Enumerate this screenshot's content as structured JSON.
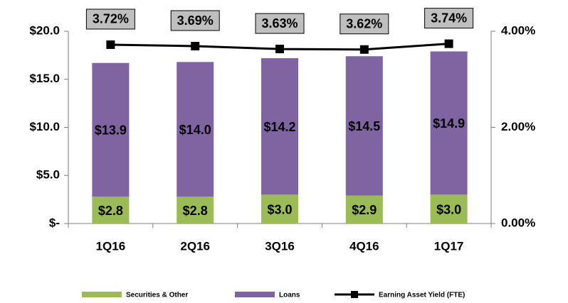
{
  "chart_data": {
    "type": "bar",
    "stacked": true,
    "categories": [
      "1Q16",
      "2Q16",
      "3Q16",
      "4Q16",
      "1Q17"
    ],
    "series": [
      {
        "name": "Securities & Other",
        "color": "#9bbb59",
        "values": [
          2.8,
          2.8,
          3.0,
          2.9,
          3.0
        ],
        "value_labels": [
          "$2.8",
          "$2.8",
          "$3.0",
          "$2.9",
          "$3.0"
        ]
      },
      {
        "name": "Loans",
        "color": "#8064a2",
        "values": [
          13.9,
          14.0,
          14.2,
          14.5,
          14.9
        ],
        "value_labels": [
          "$13.9",
          "$14.0",
          "$14.2",
          "$14.5",
          "$14.9"
        ]
      },
      {
        "name": "Earning Asset Yield (FTE)",
        "type": "line",
        "axis": "y2",
        "color": "#000000",
        "values": [
          3.72,
          3.69,
          3.63,
          3.62,
          3.74
        ],
        "value_labels": [
          "3.72%",
          "3.69%",
          "3.63%",
          "3.62%",
          "3.74%"
        ]
      }
    ],
    "ylim": [
      0,
      20
    ],
    "yticks": [
      {
        "value": 0,
        "label": "$-"
      },
      {
        "value": 5,
        "label": "$5.0"
      },
      {
        "value": 10,
        "label": "$10.0"
      },
      {
        "value": 15,
        "label": "$15.0"
      },
      {
        "value": 20,
        "label": "$20.0"
      }
    ],
    "y2lim": [
      0,
      4
    ],
    "y2ticks": [
      {
        "value": 0,
        "label": "0.00%"
      },
      {
        "value": 2,
        "label": "2.00%"
      },
      {
        "value": 4,
        "label": "4.00%"
      }
    ],
    "grid": false,
    "legend": "bottom"
  }
}
